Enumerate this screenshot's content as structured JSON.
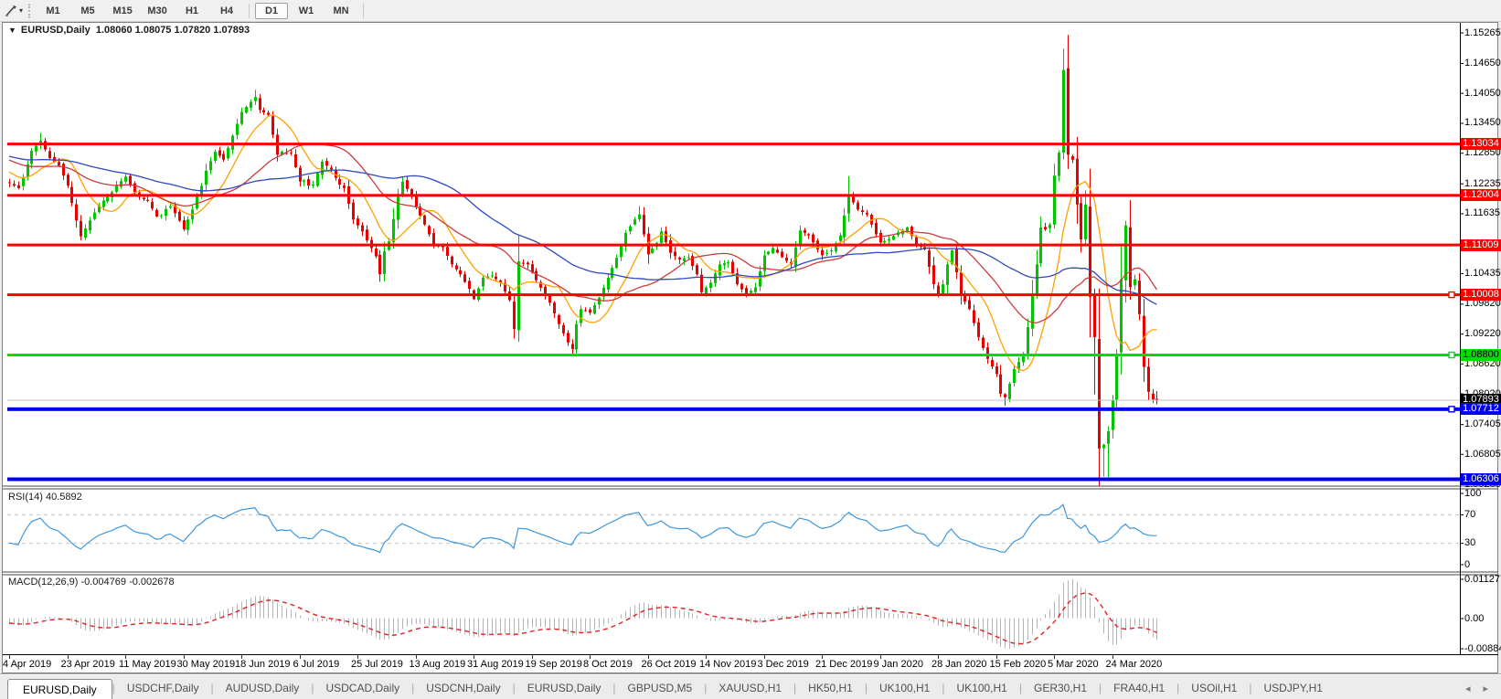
{
  "toolbar": {
    "tool_icon": "chart-cursor",
    "timeframes": [
      "M1",
      "M5",
      "M15",
      "M30",
      "H1",
      "H4",
      "D1",
      "W1",
      "MN"
    ],
    "active_timeframe": "D1"
  },
  "chart_header": {
    "symbol_period": "EURUSD,Daily",
    "ohlc": "1.08060 1.08075 1.07820 1.07893"
  },
  "price_axis": {
    "ticks": [
      "1.15265",
      "1.14650",
      "1.14050",
      "1.13450",
      "1.12850",
      "1.12235",
      "1.11635",
      "1.10435",
      "1.09820",
      "1.09220",
      "1.08620",
      "1.08020",
      "1.07405",
      "1.06805",
      "1.06205"
    ],
    "line_labels": [
      {
        "text": "1.13034",
        "price": 1.13034,
        "bg": "#ff0000",
        "fg": "#ffffff",
        "marker": false
      },
      {
        "text": "1.12004",
        "price": 1.12004,
        "bg": "#ff0000",
        "fg": "#ffffff",
        "marker": false
      },
      {
        "text": "1.11009",
        "price": 1.11009,
        "bg": "#ff0000",
        "fg": "#ffffff",
        "marker": false
      },
      {
        "text": "1.10008",
        "price": 1.10008,
        "bg": "#ff0000",
        "fg": "#ffffff",
        "marker": true
      },
      {
        "text": "1.08800",
        "price": 1.088,
        "bg": "#00dd00",
        "fg": "#000000",
        "marker": true
      },
      {
        "text": "1.07893",
        "price": 1.07893,
        "bg": "#000000",
        "fg": "#ffffff",
        "marker": false
      },
      {
        "text": "1.07712",
        "price": 1.07712,
        "bg": "#0000ee",
        "fg": "#ffffff",
        "marker": true
      },
      {
        "text": "1.06306",
        "price": 1.06306,
        "bg": "#0000ee",
        "fg": "#ffffff",
        "marker": false
      }
    ]
  },
  "hlines": [
    {
      "price": 1.13034,
      "color": "#ff0000",
      "width": 3
    },
    {
      "price": 1.12004,
      "color": "#ff0000",
      "width": 3
    },
    {
      "price": 1.11009,
      "color": "#ff0000",
      "width": 3
    },
    {
      "price": 1.10008,
      "color": "#ff0000",
      "width": 3
    },
    {
      "price": 1.088,
      "color": "#00dd00",
      "width": 3
    },
    {
      "price": 1.07712,
      "color": "#0000ee",
      "width": 4
    },
    {
      "price": 1.06306,
      "color": "#0000ee",
      "width": 4
    }
  ],
  "bid_line": {
    "price": 1.07893,
    "color": "#c0c0c0"
  },
  "rsi": {
    "label": "RSI(14) 40.5892",
    "value": 40.5892,
    "axis": [
      "100",
      "70",
      "30",
      "0"
    ],
    "axis_values": [
      100,
      70,
      30,
      0
    ],
    "dashed_levels": [
      70,
      30
    ],
    "line_color": "#3e97de"
  },
  "macd": {
    "label": "MACD(12,26,9) -0.004769 -0.002678",
    "values": [
      -0.004769,
      -0.002678
    ],
    "axis": [
      "0.011277",
      "0.00",
      "-0.008845"
    ],
    "max": 0.011277,
    "min": -0.008845,
    "hist_color": "#b4b4b4",
    "signal_color": "#e02020"
  },
  "dates": [
    "4 Apr 2019",
    "23 Apr 2019",
    "11 May 2019",
    "30 May 2019",
    "18 Jun 2019",
    "6 Jul 2019",
    "25 Jul 2019",
    "13 Aug 2019",
    "31 Aug 2019",
    "19 Sep 2019",
    "8 Oct 2019",
    "26 Oct 2019",
    "14 Nov 2019",
    "3 Dec 2019",
    "21 Dec 2019",
    "9 Jan 2020",
    "28 Jan 2020",
    "15 Feb 2020",
    "5 Mar 2020",
    "24 Mar 2020"
  ],
  "tabs": {
    "active_index": 0,
    "items": [
      "EURUSD,Daily",
      "USDCHF,Daily",
      "AUDUSD,Daily",
      "USDCAD,Daily",
      "USDCNH,Daily",
      "EURUSD,Daily",
      "GBPUSD,M5",
      "XAUUSD,H1",
      "HK50,H1",
      "UK100,H1",
      "UK100,H1",
      "GER30,H1",
      "FRA40,H1",
      "USOil,H1",
      "USDJPY,H1"
    ],
    "scroll_left_icon": "left-arrow",
    "scroll_right_icon": "right-arrow"
  },
  "chart_data": {
    "type": "candlestick",
    "symbol": "EURUSD",
    "period": "Daily",
    "ylim": [
      1.06205,
      1.15265
    ],
    "bars": 258,
    "up_color": "#00c400",
    "down_color": "#e60000",
    "close_anchors": [
      [
        0,
        1.1225
      ],
      [
        2,
        1.1215
      ],
      [
        5,
        1.129
      ],
      [
        7,
        1.131
      ],
      [
        9,
        1.1275
      ],
      [
        11,
        1.126
      ],
      [
        13,
        1.122
      ],
      [
        15,
        1.115
      ],
      [
        16,
        1.1118
      ],
      [
        18,
        1.115
      ],
      [
        21,
        1.119
      ],
      [
        24,
        1.122
      ],
      [
        26,
        1.1238
      ],
      [
        28,
        1.1205
      ],
      [
        31,
        1.119
      ],
      [
        33,
        1.1158
      ],
      [
        36,
        1.1178
      ],
      [
        39,
        1.1132
      ],
      [
        41,
        1.1172
      ],
      [
        44,
        1.125
      ],
      [
        46,
        1.1288
      ],
      [
        48,
        1.1272
      ],
      [
        50,
        1.132
      ],
      [
        52,
        1.1368
      ],
      [
        54,
        1.1388
      ],
      [
        55,
        1.1398
      ],
      [
        56,
        1.1372
      ],
      [
        58,
        1.1362
      ],
      [
        60,
        1.1282
      ],
      [
        63,
        1.1286
      ],
      [
        65,
        1.1228
      ],
      [
        68,
        1.1222
      ],
      [
        70,
        1.1268
      ],
      [
        72,
        1.1252
      ],
      [
        75,
        1.1215
      ],
      [
        77,
        1.1152
      ],
      [
        79,
        1.1128
      ],
      [
        82,
        1.1078
      ],
      [
        83,
        1.1042
      ],
      [
        84,
        1.1088
      ],
      [
        85,
        1.1108
      ],
      [
        87,
        1.1198
      ],
      [
        88,
        1.1228
      ],
      [
        90,
        1.1198
      ],
      [
        91,
        1.1178
      ],
      [
        93,
        1.1142
      ],
      [
        95,
        1.1102
      ],
      [
        97,
        1.1096
      ],
      [
        99,
        1.1062
      ],
      [
        101,
        1.1042
      ],
      [
        104,
        1.0992
      ],
      [
        106,
        1.1035
      ],
      [
        108,
        1.104
      ],
      [
        110,
        1.1025
      ],
      [
        112,
        1.099
      ],
      [
        113,
        1.0932
      ],
      [
        114,
        1.1068
      ],
      [
        116,
        1.1062
      ],
      [
        117,
        1.1045
      ],
      [
        119,
        1.1015
      ],
      [
        121,
        1.0985
      ],
      [
        123,
        1.0942
      ],
      [
        125,
        1.0905
      ],
      [
        126,
        1.0892
      ],
      [
        127,
        1.0942
      ],
      [
        128,
        1.0972
      ],
      [
        130,
        1.0965
      ],
      [
        132,
        1.0995
      ],
      [
        134,
        1.1035
      ],
      [
        136,
        1.1075
      ],
      [
        138,
        1.1125
      ],
      [
        140,
        1.1152
      ],
      [
        141,
        1.1162
      ],
      [
        143,
        1.1082
      ],
      [
        145,
        1.1105
      ],
      [
        146,
        1.1128
      ],
      [
        148,
        1.1085
      ],
      [
        150,
        1.1072
      ],
      [
        152,
        1.1076
      ],
      [
        154,
        1.1042
      ],
      [
        155,
        1.1006
      ],
      [
        157,
        1.1025
      ],
      [
        159,
        1.1062
      ],
      [
        161,
        1.1066
      ],
      [
        163,
        1.1022
      ],
      [
        165,
        1.1002
      ],
      [
        167,
        1.1016
      ],
      [
        169,
        1.108
      ],
      [
        171,
        1.1095
      ],
      [
        173,
        1.1076
      ],
      [
        175,
        1.1062
      ],
      [
        177,
        1.113
      ],
      [
        179,
        1.112
      ],
      [
        181,
        1.1092
      ],
      [
        182,
        1.108
      ],
      [
        184,
        1.109
      ],
      [
        186,
        1.112
      ],
      [
        188,
        1.12
      ],
      [
        190,
        1.1172
      ],
      [
        192,
        1.1162
      ],
      [
        194,
        1.1122
      ],
      [
        195,
        1.1106
      ],
      [
        197,
        1.1112
      ],
      [
        199,
        1.1126
      ],
      [
        201,
        1.1136
      ],
      [
        203,
        1.1102
      ],
      [
        205,
        1.1092
      ],
      [
        207,
        1.1022
      ],
      [
        208,
        1.1002
      ],
      [
        209,
        1.1022
      ],
      [
        210,
        1.1062
      ],
      [
        211,
        1.109
      ],
      [
        213,
        1.1002
      ],
      [
        215,
        1.0972
      ],
      [
        217,
        1.0916
      ],
      [
        219,
        1.0872
      ],
      [
        221,
        1.0842
      ],
      [
        222,
        1.0802
      ],
      [
        223,
        1.0795
      ],
      [
        224,
        1.0822
      ],
      [
        225,
        1.0852
      ],
      [
        226,
        1.0866
      ],
      [
        227,
        1.0882
      ],
      [
        228,
        1.0936
      ],
      [
        229,
        1.1002
      ],
      [
        230,
        1.1062
      ],
      [
        231,
        1.1136
      ],
      [
        232,
        1.1132
      ],
      [
        233,
        1.1142
      ],
      [
        234,
        1.124
      ],
      [
        235,
        1.1286
      ],
      [
        236,
        1.1452
      ],
      [
        237,
        1.1282
      ],
      [
        238,
        1.1272
      ],
      [
        239,
        1.1182
      ],
      [
        240,
        1.1112
      ],
      [
        241,
        1.1182
      ],
      [
        242,
        1.0996
      ],
      [
        243,
        1.0916
      ],
      [
        244,
        1.0692
      ],
      [
        245,
        1.07
      ],
      [
        246,
        1.0727
      ],
      [
        247,
        1.079
      ],
      [
        248,
        1.0882
      ],
      [
        249,
        1.1032
      ],
      [
        250,
        1.114
      ],
      [
        251,
        1.1016
      ],
      [
        252,
        1.1032
      ],
      [
        253,
        1.0962
      ],
      [
        254,
        1.0856
      ],
      [
        255,
        1.0806
      ],
      [
        256,
        1.0791
      ],
      [
        257,
        1.0789
      ]
    ],
    "pre_history": [
      [
        -50,
        1.133
      ],
      [
        -42,
        1.129
      ],
      [
        -35,
        1.1245
      ],
      [
        -28,
        1.13
      ],
      [
        -20,
        1.132
      ],
      [
        -14,
        1.126
      ],
      [
        -8,
        1.127
      ],
      [
        -1,
        1.123
      ]
    ],
    "extremes": {
      "7": {
        "high": 1.1326
      },
      "16": {
        "low": 1.111
      },
      "55": {
        "high": 1.1412
      },
      "83": {
        "low": 1.1027
      },
      "113": {
        "low": 1.0926
      },
      "126": {
        "low": 1.0879
      },
      "141": {
        "high": 1.1179
      },
      "188": {
        "high": 1.1239
      },
      "223": {
        "low": 1.0778
      },
      "236": {
        "high": 1.1495
      },
      "243": {
        "low": 1.0801
      },
      "244": {
        "low": 1.0656
      },
      "245": {
        "low": 1.0636
      },
      "246": {
        "low": 1.0635
      },
      "250": {
        "high": 1.1148
      },
      "257": {
        "high": 1.08075,
        "low": 1.0782
      }
    },
    "sma": [
      {
        "period": 10,
        "color": "#ffa000"
      },
      {
        "period": 25,
        "color": "#cc3c3c"
      },
      {
        "period": 50,
        "color": "#3048c0"
      }
    ]
  }
}
